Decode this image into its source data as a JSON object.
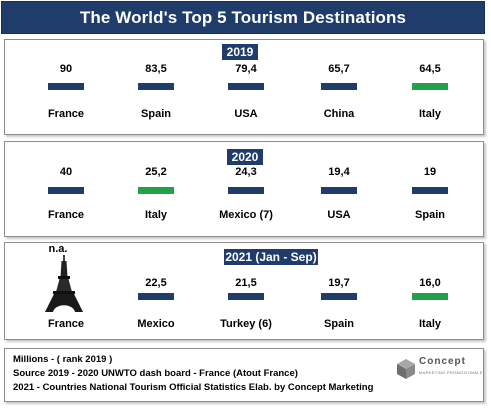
{
  "title": "The World's Top 5 Tourism Destinations",
  "chart_data": [
    {
      "type": "bar",
      "title": "2019",
      "categories": [
        "France",
        "Spain",
        "USA",
        "China",
        "Italy"
      ],
      "value_labels": [
        "90",
        "83,5",
        "79,4",
        "65,7",
        "64,5"
      ],
      "values": [
        90,
        83.5,
        79.4,
        65.7,
        64.5
      ],
      "highlight_color": "#22a149",
      "bar_color": "#1f3c6b",
      "bar_colors": [
        "#1f3c6b",
        "#1f3c6b",
        "#1f3c6b",
        "#1f3c6b",
        "#22a149"
      ]
    },
    {
      "type": "bar",
      "title": "2020",
      "categories": [
        "France",
        "Italy",
        "Mexico (7)",
        "USA",
        "Spain"
      ],
      "value_labels": [
        "40",
        "25,2",
        "24,3",
        "19,4",
        "19"
      ],
      "values": [
        40,
        25.2,
        24.3,
        19.4,
        19
      ],
      "bar_colors": [
        "#1f3c6b",
        "#22a149",
        "#1f3c6b",
        "#1f3c6b",
        "#1f3c6b"
      ]
    },
    {
      "type": "bar",
      "title": "2021 (Jan - Sep)",
      "categories": [
        "France",
        "Mexico",
        "Turkey (6)",
        "Spain",
        "Italy"
      ],
      "value_labels": [
        "n.a.",
        "22,5",
        "21,5",
        "19,7",
        "16,0"
      ],
      "values": [
        null,
        22.5,
        21.5,
        19.7,
        16.0
      ],
      "bar_colors": [
        null,
        "#1f3c6b",
        "#1f3c6b",
        "#1f3c6b",
        "#22a149"
      ],
      "icons": [
        "eiffel-tower-icon",
        null,
        null,
        null,
        null
      ]
    }
  ],
  "footer": {
    "line1": "Millions - ( rank 2019 )",
    "line2": "Source 2019 - 2020 UNWTO dash board  - France (Atout France)",
    "line3": "2021 - Countries  National Tourism Official Statistics   Elab. by Concept Marketing"
  },
  "logo": {
    "name": "Concept",
    "tagline": "MARKETING PROMOZIONALE",
    "icon": "concept-logo-icon"
  }
}
